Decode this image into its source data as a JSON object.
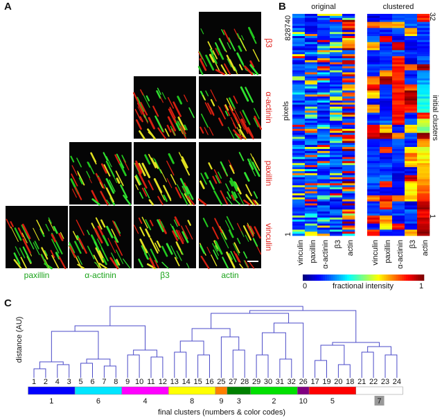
{
  "panel_a": {
    "label": "A",
    "row_labels": [
      "β3",
      "α-actinin",
      "paxillin",
      "vinculin"
    ],
    "col_labels": [
      "paxillin",
      "α-actinin",
      "β3",
      "actin"
    ]
  },
  "panel_b": {
    "label": "B",
    "heatmap_titles": [
      "original",
      "clustered"
    ],
    "columns": [
      "vinculin",
      "paxillin",
      "α-actinin",
      "β3",
      "actin"
    ],
    "y_label": "pixels",
    "y_top": "828740",
    "y_bottom": "1",
    "right_label": "initial clusters",
    "right_top": "32",
    "right_bottom": "1",
    "colorbar": {
      "label": "fractional intensity",
      "min": "0",
      "max": "1"
    }
  },
  "panel_c": {
    "label": "C",
    "y_label": "distance (AU)",
    "x_label": "final clusters (numbers & color codes)",
    "clusters": [
      {
        "label": "1",
        "color": "#0000ff",
        "leaves": [
          1,
          2,
          4,
          3
        ]
      },
      {
        "label": "6",
        "color": "#00e5ff",
        "leaves": [
          5,
          6,
          7,
          8
        ]
      },
      {
        "label": "4",
        "color": "#ff00ff",
        "leaves": [
          9,
          10,
          11,
          12
        ]
      },
      {
        "label": "8",
        "color": "#ffff00",
        "leaves": [
          13,
          14,
          15,
          16
        ]
      },
      {
        "label": "9",
        "color": "#ff8000",
        "leaves": [
          25
        ]
      },
      {
        "label": "3",
        "color": "#008000",
        "leaves": [
          27,
          28
        ]
      },
      {
        "label": "2",
        "color": "#00e000",
        "leaves": [
          29,
          30,
          31,
          32
        ]
      },
      {
        "label": "10",
        "color": "#800080",
        "leaves": [
          26
        ]
      },
      {
        "label": "5",
        "color": "#ff0000",
        "leaves": [
          17,
          19,
          20,
          18
        ]
      },
      {
        "label": "7",
        "color": "#ffffff",
        "leaves": [
          21,
          22,
          23,
          24
        ]
      }
    ]
  }
}
